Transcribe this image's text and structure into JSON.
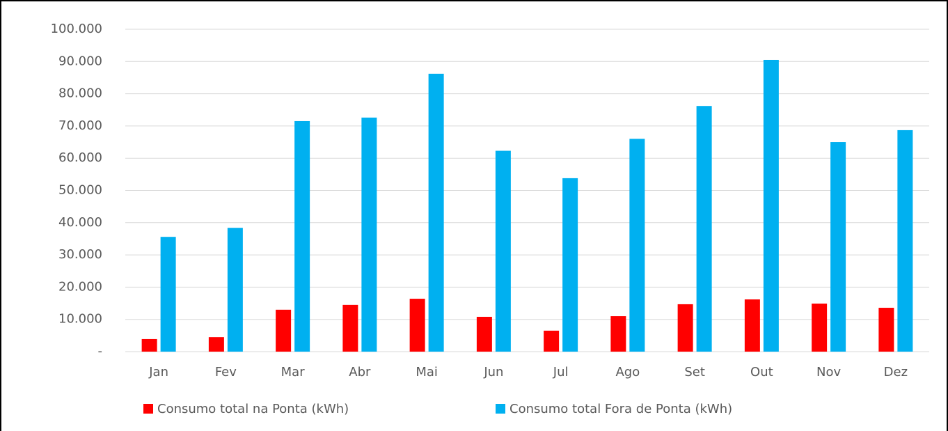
{
  "chart_data": {
    "type": "bar",
    "categories": [
      "Jan",
      "Fev",
      "Mar",
      "Abr",
      "Mai",
      "Jun",
      "Jul",
      "Ago",
      "Set",
      "Out",
      "Nov",
      "Dez"
    ],
    "series": [
      {
        "name": "Consumo total na Ponta (kWh)",
        "color": "#ff0000",
        "values": [
          3900,
          4500,
          13000,
          14500,
          16400,
          10800,
          6500,
          11000,
          14700,
          16200,
          14900,
          13600
        ]
      },
      {
        "name": "Consumo total Fora de Ponta (kWh)",
        "color": "#00b0f0",
        "values": [
          35600,
          38400,
          71500,
          72600,
          86200,
          62300,
          53800,
          66000,
          76200,
          90500,
          65000,
          68700
        ]
      }
    ],
    "ylim": [
      0,
      100000
    ],
    "yticks": [
      {
        "value": 0,
        "label": "-"
      },
      {
        "value": 10000,
        "label": "10.000"
      },
      {
        "value": 20000,
        "label": "20.000"
      },
      {
        "value": 30000,
        "label": "30.000"
      },
      {
        "value": 40000,
        "label": "40.000"
      },
      {
        "value": 50000,
        "label": "50.000"
      },
      {
        "value": 60000,
        "label": "60.000"
      },
      {
        "value": 70000,
        "label": "70.000"
      },
      {
        "value": 80000,
        "label": "80.000"
      },
      {
        "value": 90000,
        "label": "90.000"
      },
      {
        "value": 100000,
        "label": "100.000"
      }
    ],
    "grid": true,
    "legend": "bottom"
  }
}
